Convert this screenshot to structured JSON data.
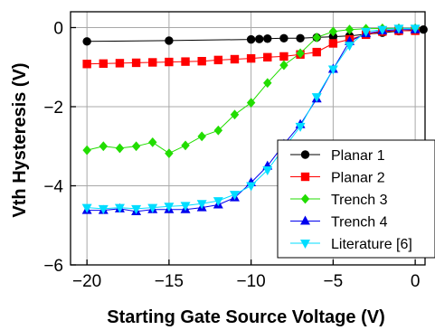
{
  "chart_data": {
    "type": "line",
    "title": "",
    "xlabel": "Starting Gate Source Voltage (V)",
    "ylabel": "Vth Hysteresis (V)",
    "xlim": [
      -21,
      0.6
    ],
    "ylim": [
      -6,
      0.4
    ],
    "xticks": [
      -20,
      -15,
      -10,
      -5,
      0
    ],
    "yticks": [
      -6,
      -4,
      -2,
      0
    ],
    "xtick_labels": [
      "−20",
      "−15",
      "−10",
      "−5",
      "0"
    ],
    "ytick_labels": [
      "−6",
      "−4",
      "−2",
      "0"
    ],
    "grid": true,
    "legend_position": "bottom-right",
    "series": [
      {
        "name": "Planar 1",
        "color": "#000000",
        "marker": "circle",
        "x": [
          -20,
          -15,
          -10,
          -9.5,
          -9,
          -8,
          -7,
          -6,
          -5,
          -4,
          -3,
          -2,
          -1,
          0,
          0.5
        ],
        "y": [
          -0.35,
          -0.33,
          -0.3,
          -0.29,
          -0.28,
          -0.27,
          -0.27,
          -0.25,
          -0.23,
          -0.21,
          -0.17,
          -0.13,
          -0.09,
          -0.06,
          -0.05
        ]
      },
      {
        "name": "Planar 2",
        "color": "#ff0000",
        "marker": "square",
        "x": [
          -20,
          -19,
          -18,
          -17,
          -16,
          -15,
          -14,
          -13,
          -12,
          -11,
          -10,
          -9,
          -8,
          -7,
          -6,
          -5,
          -4,
          -3,
          -2,
          -1,
          0
        ],
        "y": [
          -0.92,
          -0.91,
          -0.9,
          -0.89,
          -0.88,
          -0.87,
          -0.86,
          -0.85,
          -0.82,
          -0.8,
          -0.78,
          -0.75,
          -0.73,
          -0.68,
          -0.62,
          -0.4,
          -0.3,
          -0.18,
          -0.1,
          -0.08,
          -0.08
        ]
      },
      {
        "name": "Trench 3",
        "color": "#22dd00",
        "marker": "diamond",
        "x": [
          -20,
          -19,
          -18,
          -17,
          -16,
          -15,
          -14,
          -13,
          -12,
          -11,
          -10,
          -9,
          -8,
          -7,
          -6,
          -5,
          -4,
          -3,
          -2,
          -1,
          0
        ],
        "y": [
          -3.1,
          -3.0,
          -3.05,
          -3.0,
          -2.9,
          -3.18,
          -2.98,
          -2.75,
          -2.6,
          -2.2,
          -1.9,
          -1.4,
          -0.95,
          -0.65,
          -0.25,
          -0.1,
          -0.05,
          -0.03,
          -0.02,
          -0.02,
          -0.02
        ]
      },
      {
        "name": "Trench 4",
        "color": "#0000ee",
        "marker": "triangle-up",
        "x": [
          -20,
          -19,
          -18,
          -17,
          -16,
          -15,
          -14,
          -13,
          -12,
          -11,
          -10,
          -9,
          -8,
          -7,
          -6,
          -5,
          -4,
          -3,
          -2,
          -1,
          0
        ],
        "y": [
          -4.62,
          -4.62,
          -4.58,
          -4.65,
          -4.6,
          -4.6,
          -4.6,
          -4.55,
          -4.48,
          -4.3,
          -3.92,
          -3.5,
          -2.95,
          -2.45,
          -1.8,
          -1.05,
          -0.35,
          -0.15,
          -0.08,
          -0.05,
          -0.05
        ]
      },
      {
        "name": "Literature [6]",
        "color": "#00ddff",
        "marker": "triangle-down",
        "x": [
          -20,
          -19,
          -18,
          -17,
          -16,
          -15,
          -14,
          -13,
          -12,
          -11,
          -10,
          -9,
          -8,
          -7,
          -6,
          -5,
          -4,
          -3,
          -2,
          -1,
          0
        ],
        "y": [
          -4.55,
          -4.58,
          -4.55,
          -4.58,
          -4.55,
          -4.52,
          -4.5,
          -4.45,
          -4.38,
          -4.22,
          -4.0,
          -3.6,
          -3.05,
          -2.5,
          -1.75,
          -1.05,
          -0.45,
          -0.1,
          -0.05,
          -0.02,
          -0.02
        ]
      }
    ]
  }
}
